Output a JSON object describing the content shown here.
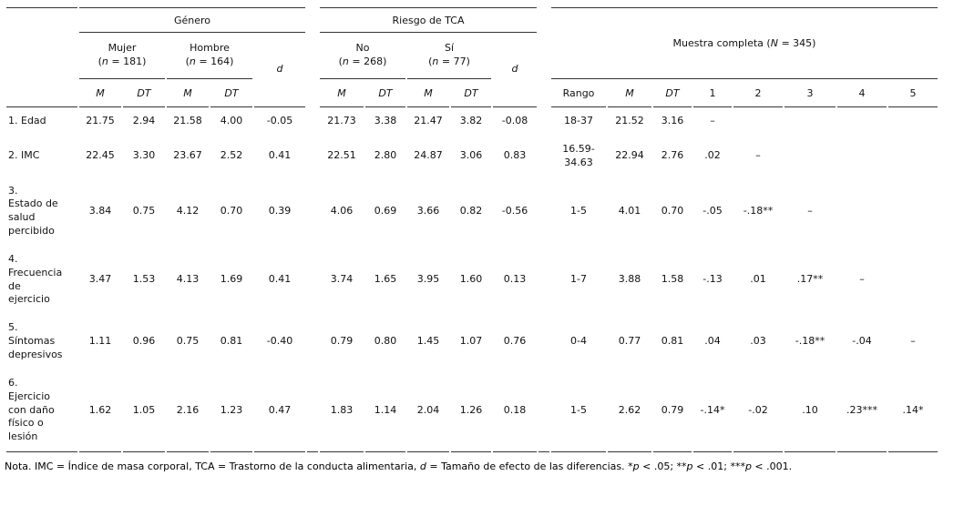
{
  "table": {
    "header": {
      "groups": {
        "genero": {
          "label": "Género"
        },
        "tca": {
          "label": "Riesgo de TCA"
        },
        "muestra": {
          "pre": "Muestra completa (",
          "sym": "N",
          "post": " = 345)"
        }
      },
      "subgroups": {
        "mujer": {
          "name": "Mujer",
          "pre": "(",
          "sym": "n",
          "post": " = 181)"
        },
        "hombre": {
          "name": "Hombre",
          "pre": "(",
          "sym": "n",
          "post": " = 164)"
        },
        "no": {
          "name": "No",
          "pre": "(",
          "sym": "n",
          "post": " = 268)"
        },
        "si": {
          "name": "Sí",
          "pre": "(",
          "sym": "n",
          "post": " = 77)"
        },
        "d1": "d",
        "d2": "d"
      },
      "cols": {
        "m": "M",
        "dt": "DT",
        "rango": "Rango",
        "c1": "1",
        "c2": "2",
        "c3": "3",
        "c4": "4",
        "c5": "5"
      }
    },
    "rows": [
      {
        "label": "1. Edad",
        "cells": [
          "21.75",
          "2.94",
          "21.58",
          "4.00",
          "-0.05",
          "21.73",
          "3.38",
          "21.47",
          "3.82",
          "-0.08",
          "18-37",
          "21.52",
          "3.16",
          "–",
          "",
          "",
          "",
          ""
        ]
      },
      {
        "label": "2. IMC",
        "cells": [
          "22.45",
          "3.30",
          "23.67",
          "2.52",
          "0.41",
          "22.51",
          "2.80",
          "24.87",
          "3.06",
          "0.83",
          "16.59-34.63",
          "22.94",
          "2.76",
          ".02",
          "–",
          "",
          "",
          ""
        ]
      },
      {
        "label": "3.\nEstado de\nsalud\npercibido",
        "cells": [
          "3.84",
          "0.75",
          "4.12",
          "0.70",
          "0.39",
          "4.06",
          "0.69",
          "3.66",
          "0.82",
          "-0.56",
          "1-5",
          "4.01",
          "0.70",
          "-.05",
          "-.18**",
          "–",
          "",
          ""
        ]
      },
      {
        "label": "4.\nFrecuencia\nde\nejercicio",
        "cells": [
          "3.47",
          "1.53",
          "4.13",
          "1.69",
          "0.41",
          "3.74",
          "1.65",
          "3.95",
          "1.60",
          "0.13",
          "1-7",
          "3.88",
          "1.58",
          "-.13",
          ".01",
          ".17**",
          "–",
          ""
        ]
      },
      {
        "label": "5.\nSíntomas\ndepresivos",
        "cells": [
          "1.11",
          "0.96",
          "0.75",
          "0.81",
          "-0.40",
          "0.79",
          "0.80",
          "1.45",
          "1.07",
          "0.76",
          "0-4",
          "0.77",
          "0.81",
          ".04",
          ".03",
          "-.18**",
          "-.04",
          "–"
        ]
      },
      {
        "label": "6.\nEjercicio\ncon daño\nfísico o\nlesión",
        "cells": [
          "1.62",
          "1.05",
          "2.16",
          "1.23",
          "0.47",
          "1.83",
          "1.14",
          "2.04",
          "1.26",
          "0.18",
          "1-5",
          "2.62",
          "0.79",
          "-.14*",
          "-.02",
          ".10",
          ".23***",
          ".14*"
        ]
      }
    ]
  },
  "note": {
    "s1": "Nota. IMC = Índice de masa corporal, TCA = Trastorno de la conducta alimentaria, ",
    "s2": "d",
    "s3": " = Tamaño de efecto de las diferencias. *",
    "s4": "p",
    "s5": " < .05; **",
    "s6": "p",
    "s7": " < .01; ***",
    "s8": "p",
    "s9": " < .001."
  }
}
